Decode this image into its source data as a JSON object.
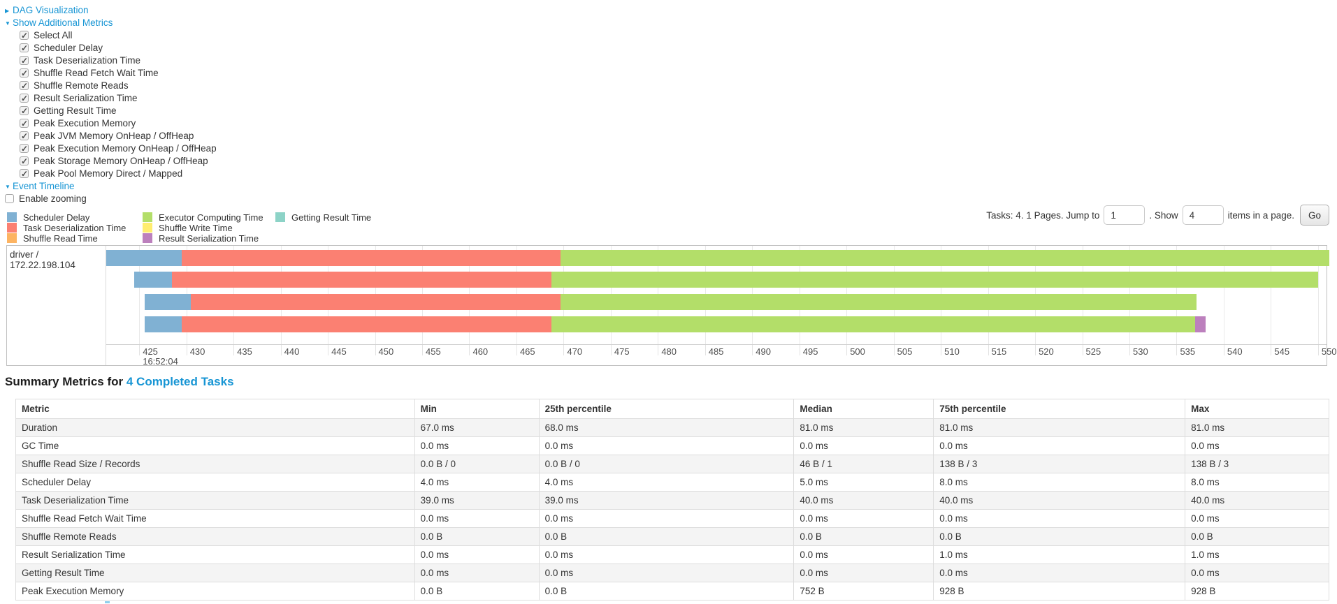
{
  "colors": {
    "link": "#1795d4",
    "table_border": "#dddddd",
    "row_stripe": "#f4f4f4"
  },
  "controls": {
    "dag_label": "DAG Visualization",
    "metrics_label": "Show Additional Metrics",
    "metric_checkboxes": [
      {
        "label": "Select All",
        "checked": true
      },
      {
        "label": "Scheduler Delay",
        "checked": true
      },
      {
        "label": "Task Deserialization Time",
        "checked": true
      },
      {
        "label": "Shuffle Read Fetch Wait Time",
        "checked": true
      },
      {
        "label": "Shuffle Remote Reads",
        "checked": true
      },
      {
        "label": "Result Serialization Time",
        "checked": true
      },
      {
        "label": "Getting Result Time",
        "checked": true
      },
      {
        "label": "Peak Execution Memory",
        "checked": true
      },
      {
        "label": "Peak JVM Memory OnHeap / OffHeap",
        "checked": true
      },
      {
        "label": "Peak Execution Memory OnHeap / OffHeap",
        "checked": true
      },
      {
        "label": "Peak Storage Memory OnHeap / OffHeap",
        "checked": true
      },
      {
        "label": "Peak Pool Memory Direct / Mapped",
        "checked": true
      }
    ],
    "event_timeline_label": "Event Timeline",
    "enable_zooming": {
      "label": "Enable zooming",
      "checked": false
    }
  },
  "pagination": {
    "prefix": "Tasks: 4. 1 Pages. Jump to",
    "jump_value": "1",
    "mid": ". Show",
    "show_value": "4",
    "suffix": "items in a page.",
    "go_label": "Go"
  },
  "legend": {
    "columns": [
      [
        {
          "label": "Scheduler Delay",
          "type": "scheduler_delay"
        },
        {
          "label": "Task Deserialization Time",
          "type": "task_deserialization"
        },
        {
          "label": "Shuffle Read Time",
          "type": "shuffle_read"
        }
      ],
      [
        {
          "label": "Executor Computing Time",
          "type": "executor_computing"
        },
        {
          "label": "Shuffle Write Time",
          "type": "shuffle_write"
        },
        {
          "label": "Result Serialization Time",
          "type": "result_serialization"
        }
      ],
      [
        {
          "label": "Getting Result Time",
          "type": "getting_result"
        }
      ]
    ]
  },
  "chart_data": {
    "type": "timeline",
    "title": "Event Timeline",
    "group_label": "driver / 172.22.198.104",
    "axis": {
      "min": 421.5,
      "max": 550.9,
      "tick_start": 425,
      "tick_end": 550,
      "tick_step": 5,
      "unit": "ms (seconds scale of clock time)",
      "major_label": "16:52:04"
    },
    "series_colors": {
      "scheduler_delay": "#80B1D3",
      "task_deserialization": "#FB8072",
      "shuffle_read": "#FDB462",
      "executor_computing": "#B3DE69",
      "shuffle_write": "#FFED6F",
      "result_serialization": "#BC80BD",
      "getting_result": "#8DD3C7"
    },
    "tasks": [
      {
        "segments": [
          {
            "type": "scheduler_delay",
            "start": 421.5,
            "end": 429.5
          },
          {
            "type": "task_deserialization",
            "start": 429.5,
            "end": 469.7
          },
          {
            "type": "executor_computing",
            "start": 469.7,
            "end": 551.2
          }
        ]
      },
      {
        "segments": [
          {
            "type": "scheduler_delay",
            "start": 424.5,
            "end": 428.5
          },
          {
            "type": "task_deserialization",
            "start": 428.5,
            "end": 468.7
          },
          {
            "type": "executor_computing",
            "start": 468.7,
            "end": 550.0
          }
        ]
      },
      {
        "segments": [
          {
            "type": "scheduler_delay",
            "start": 425.6,
            "end": 430.5
          },
          {
            "type": "task_deserialization",
            "start": 430.5,
            "end": 469.7
          },
          {
            "type": "executor_computing",
            "start": 469.7,
            "end": 537.1
          }
        ]
      },
      {
        "segments": [
          {
            "type": "scheduler_delay",
            "start": 425.6,
            "end": 429.5
          },
          {
            "type": "task_deserialization",
            "start": 429.5,
            "end": 468.7
          },
          {
            "type": "executor_computing",
            "start": 468.7,
            "end": 537.0
          },
          {
            "type": "result_serialization",
            "start": 537.0,
            "end": 538.1
          }
        ]
      }
    ]
  },
  "summary": {
    "title_prefix": "Summary Metrics for",
    "title_link": "4 Completed Tasks",
    "table": {
      "columns": [
        "Metric",
        "Min",
        "25th percentile",
        "Median",
        "75th percentile",
        "Max"
      ],
      "rows": [
        {
          "metric": "Duration",
          "values": [
            "67.0 ms",
            "68.0 ms",
            "81.0 ms",
            "81.0 ms",
            "81.0 ms"
          ]
        },
        {
          "metric": "GC Time",
          "values": [
            "0.0 ms",
            "0.0 ms",
            "0.0 ms",
            "0.0 ms",
            "0.0 ms"
          ]
        },
        {
          "metric": "Shuffle Read Size / Records",
          "values": [
            "0.0 B / 0",
            "0.0 B / 0",
            "46 B / 1",
            "138 B / 3",
            "138 B / 3"
          ]
        },
        {
          "metric": "Scheduler Delay",
          "values": [
            "4.0 ms",
            "4.0 ms",
            "5.0 ms",
            "8.0 ms",
            "8.0 ms"
          ]
        },
        {
          "metric": "Task Deserialization Time",
          "values": [
            "39.0 ms",
            "39.0 ms",
            "40.0 ms",
            "40.0 ms",
            "40.0 ms"
          ]
        },
        {
          "metric": "Shuffle Read Fetch Wait Time",
          "values": [
            "0.0 ms",
            "0.0 ms",
            "0.0 ms",
            "0.0 ms",
            "0.0 ms"
          ]
        },
        {
          "metric": "Shuffle Remote Reads",
          "values": [
            "0.0 B",
            "0.0 B",
            "0.0 B",
            "0.0 B",
            "0.0 B"
          ]
        },
        {
          "metric": "Result Serialization Time",
          "values": [
            "0.0 ms",
            "0.0 ms",
            "0.0 ms",
            "1.0 ms",
            "1.0 ms"
          ]
        },
        {
          "metric": "Getting Result Time",
          "values": [
            "0.0 ms",
            "0.0 ms",
            "0.0 ms",
            "0.0 ms",
            "0.0 ms"
          ]
        },
        {
          "metric": "Peak Execution Memory",
          "values": [
            "0.0 B",
            "0.0 B",
            "752 B",
            "928 B",
            "928 B"
          ]
        }
      ]
    }
  }
}
